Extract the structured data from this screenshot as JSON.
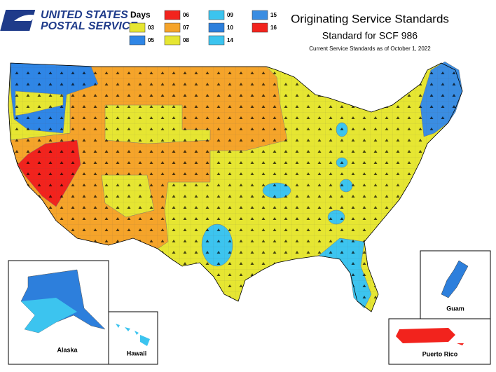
{
  "logo": {
    "line1": "UNITED STATES",
    "line2": "POSTAL SERVICE."
  },
  "title": "Originating Service Standards",
  "subtitle": "Standard for SCF 986",
  "note": "Current Service Standards as of October 1, 2022",
  "legend": {
    "title": "Days",
    "items": [
      {
        "label": "03",
        "color": "#e6e632"
      },
      {
        "label": "05",
        "color": "#2f86e6"
      },
      {
        "label": "06",
        "color": "#f2231d"
      },
      {
        "label": "07",
        "color": "#f5a42a"
      },
      {
        "label": "08",
        "color": "#e6e632"
      },
      {
        "label": "09",
        "color": "#3cc4ef"
      },
      {
        "label": "10",
        "color": "#2d7fdc"
      },
      {
        "label": "14",
        "color": "#3cc4ef"
      },
      {
        "label": "15",
        "color": "#3a8de2"
      },
      {
        "label": "16",
        "color": "#f2231d"
      }
    ]
  },
  "insets": [
    "Alaska",
    "Hawaii",
    "Guam",
    "Puerto Rico"
  ]
}
